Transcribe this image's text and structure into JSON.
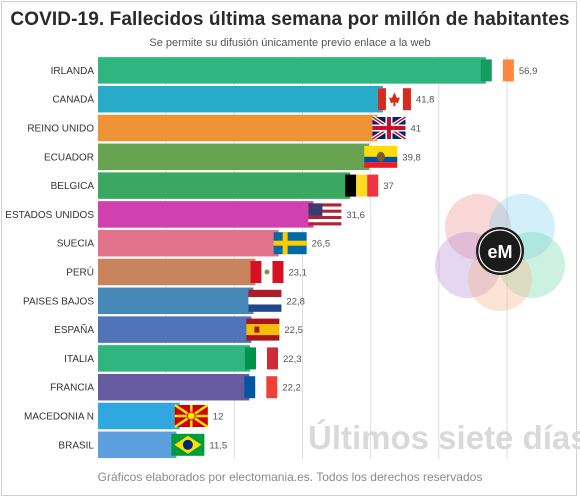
{
  "header": {
    "title": "COVID-19. Fallecidos última semana por millón de habitantes",
    "subtitle": "Se permite su difusión únicamente previo enlace a la web"
  },
  "footer": {
    "text": "Gráficos elaborados por electomania.es. Todos los derechos reservados"
  },
  "watermark": {
    "text": "Últimos siete días"
  },
  "logo": {
    "text": "eM"
  },
  "chart_data": {
    "type": "bar",
    "orientation": "horizontal",
    "title": "COVID-19. Fallecidos última semana por millón de habitantes",
    "subtitle": "Se permite su difusión únicamente previo enlace a la web",
    "xlim": [
      0,
      60
    ],
    "grid": true,
    "categories": [
      "IRLANDA",
      "CANADÁ",
      "REINO UNIDO",
      "ECUADOR",
      "BELGICA",
      "ESTADOS UNIDOS",
      "SUECIA",
      "PERÚ",
      "PAISES BAJOS",
      "ESPAÑA",
      "ITALIA",
      "FRANCIA",
      "MACEDONIA N",
      "BRASIL"
    ],
    "values": [
      56.9,
      41.8,
      41,
      39.8,
      37,
      31.6,
      26.5,
      23.1,
      22.8,
      22.5,
      22.3,
      22.2,
      12,
      11.5
    ],
    "value_labels": [
      "56,9",
      "41,8",
      "41",
      "39,8",
      "37",
      "31,6",
      "26,5",
      "23,1",
      "22,8",
      "22,5",
      "22,3",
      "22,2",
      "12",
      "11,5"
    ],
    "colors": [
      "#2fb57f",
      "#28aac9",
      "#ee9437",
      "#68a352",
      "#3ba862",
      "#d23faf",
      "#e3738d",
      "#c8845c",
      "#4689b9",
      "#5174b8",
      "#2fb57f",
      "#665b9e",
      "#30a7df",
      "#5d9edf"
    ],
    "flags": [
      "ireland",
      "canada",
      "united-kingdom",
      "ecuador",
      "belgium",
      "united-states",
      "sweden",
      "peru",
      "netherlands",
      "spain",
      "italy",
      "france",
      "north-macedonia",
      "brazil"
    ]
  }
}
